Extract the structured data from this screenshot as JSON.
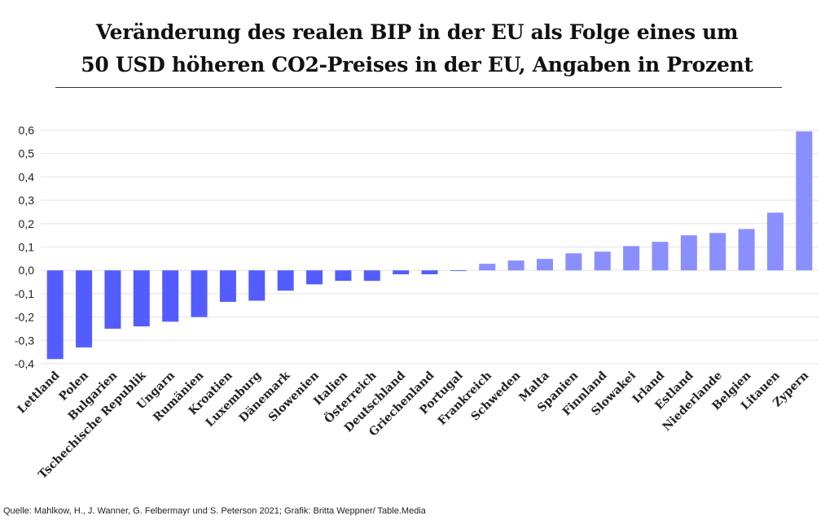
{
  "chart_data": {
    "type": "bar",
    "title_lines": [
      "Veränderung des realen BIP in der EU als Folge eines um",
      "50 USD höheren CO2-Preises in der EU, Angaben in Prozent"
    ],
    "categories": [
      "Lettland",
      "Polen",
      "Bulgarien",
      "Tschechische Republik",
      "Ungarn",
      "Rumänien",
      "Kroatien",
      "Luxemburg",
      "Dänemark",
      "Slowenien",
      "Italien",
      "Österreich",
      "Deutschland",
      "Griechenland",
      "Portugal",
      "Frankreich",
      "Schweden",
      "Malta",
      "Spanien",
      "Finnland",
      "Slowakei",
      "Irland",
      "Estland",
      "Niederlande",
      "Belgien",
      "Litauen",
      "Zypern"
    ],
    "values": [
      -0.38,
      -0.33,
      -0.25,
      -0.24,
      -0.22,
      -0.2,
      -0.135,
      -0.13,
      -0.087,
      -0.06,
      -0.045,
      -0.045,
      -0.017,
      -0.017,
      -0.003,
      0.028,
      0.042,
      0.049,
      0.073,
      0.08,
      0.104,
      0.122,
      0.15,
      0.16,
      0.177,
      0.247,
      0.595
    ],
    "ylim": [
      -0.4,
      0.6
    ],
    "yticks": [
      "0,6",
      "0,5",
      "0,4",
      "0,3",
      "0,2",
      "0,1",
      "0,0",
      "-0,1",
      "-0,2",
      "-0,3",
      "-0,4"
    ],
    "ytick_values": [
      0.6,
      0.5,
      0.4,
      0.3,
      0.2,
      0.1,
      0,
      -0.1,
      -0.2,
      -0.3,
      -0.4
    ],
    "grid": true,
    "colors": {
      "negative": "#535dff",
      "positive": "#8a8fff",
      "grid": "#ececec"
    }
  },
  "title": {
    "line1": "Veränderung des realen BIP in der EU als Folge eines um",
    "line2": "50 USD höheren CO2-Preises in der EU, Angaben in Prozent"
  },
  "source": "Quelle: Mahlkow, H., J. Wanner, G. Felbermayr und S. Peterson 2021; Grafik: Britta Weppner/ Table.Media"
}
